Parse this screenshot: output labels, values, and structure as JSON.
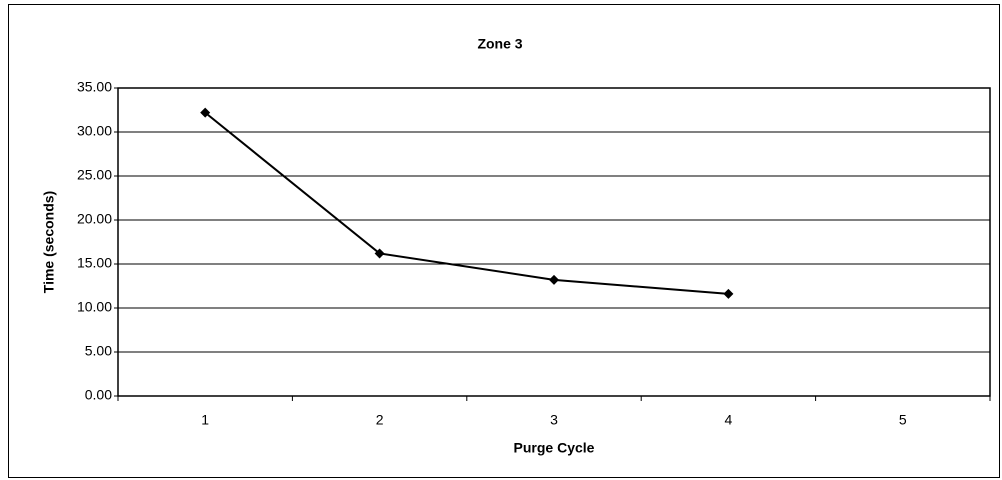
{
  "chart_data": {
    "type": "line",
    "title": "Zone 3",
    "x_label": "Purge Cycle",
    "y_label": "Time (seconds)",
    "categories": [
      "1",
      "2",
      "3",
      "4",
      "5"
    ],
    "values": [
      32.2,
      16.2,
      13.2,
      11.6,
      null
    ],
    "color": "#000000",
    "ylim": [
      0,
      35
    ],
    "yticks": [
      {
        "value": 0,
        "label": "0.00"
      },
      {
        "value": 5,
        "label": "5.00"
      },
      {
        "value": 10,
        "label": "10.00"
      },
      {
        "value": 15,
        "label": "15.00"
      },
      {
        "value": 20,
        "label": "20.00"
      },
      {
        "value": 25,
        "label": "25.00"
      },
      {
        "value": 30,
        "label": "30.00"
      },
      {
        "value": 35,
        "label": "35.00"
      }
    ],
    "grid": true
  }
}
